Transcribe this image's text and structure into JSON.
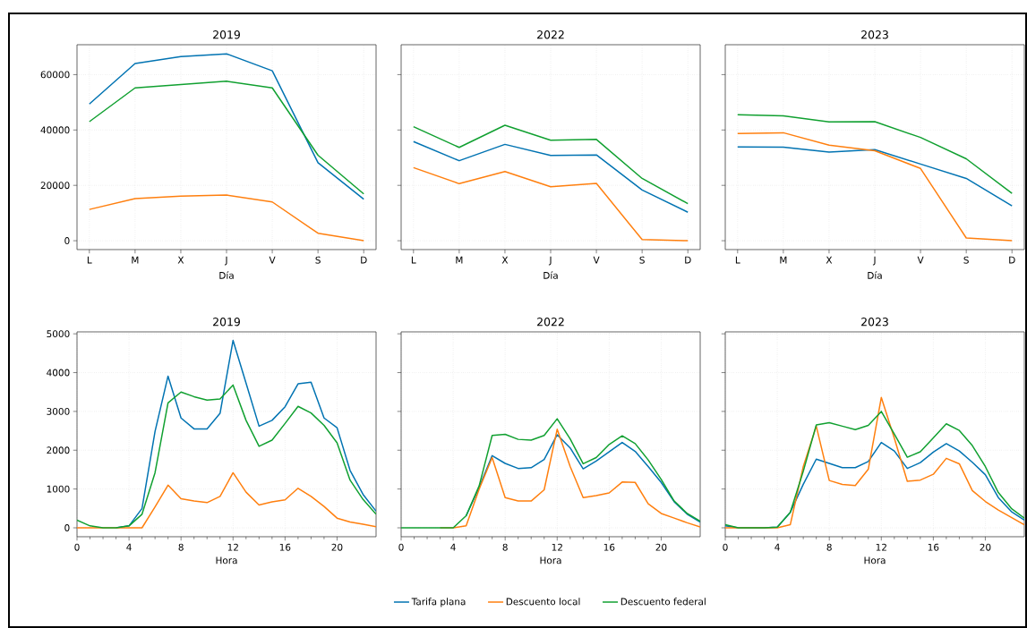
{
  "chart_data": [
    {
      "type": "line",
      "title": "2019",
      "xlabel": "Día",
      "categories": [
        "L",
        "M",
        "X",
        "J",
        "V",
        "S",
        "D"
      ],
      "ylim": [
        -3200,
        70800
      ],
      "yticks": [
        0,
        20000,
        40000,
        60000
      ],
      "grid": true,
      "legend": false,
      "series": [
        {
          "color": "#0173b2",
          "values": [
            49400,
            64000,
            66500,
            67500,
            61400,
            28200,
            15000
          ]
        },
        {
          "color": "#ff7f0e",
          "values": [
            11300,
            15200,
            16100,
            16500,
            14000,
            2700,
            0
          ]
        },
        {
          "color": "#10a030",
          "values": [
            43000,
            55200,
            56400,
            57600,
            55200,
            30900,
            16900
          ]
        }
      ]
    },
    {
      "type": "line",
      "title": "2022",
      "xlabel": "Día",
      "categories": [
        "L",
        "M",
        "X",
        "J",
        "V",
        "S",
        "D"
      ],
      "ylim": [
        -3200,
        70800
      ],
      "yticks": [
        0,
        20000,
        40000,
        60000
      ],
      "grid": true,
      "legend": false,
      "tick_labels": "x",
      "series": [
        {
          "color": "#0173b2",
          "values": [
            35800,
            28900,
            34800,
            30800,
            31000,
            18300,
            10300
          ]
        },
        {
          "color": "#ff7f0e",
          "values": [
            26400,
            20600,
            25000,
            19500,
            20700,
            400,
            0
          ]
        },
        {
          "color": "#10a030",
          "values": [
            41200,
            33700,
            41700,
            36300,
            36600,
            22500,
            13400
          ]
        }
      ]
    },
    {
      "type": "line",
      "title": "2023",
      "xlabel": "Día",
      "categories": [
        "L",
        "M",
        "X",
        "J",
        "V",
        "S",
        "D"
      ],
      "ylim": [
        -3200,
        70800
      ],
      "yticks": [
        0,
        20000,
        40000,
        60000
      ],
      "grid": true,
      "legend": false,
      "tick_labels": "x",
      "series": [
        {
          "color": "#0173b2",
          "values": [
            33900,
            33800,
            32000,
            32900,
            27700,
            22500,
            12600
          ]
        },
        {
          "color": "#ff7f0e",
          "values": [
            38700,
            39000,
            34500,
            32500,
            26100,
            1000,
            0
          ]
        },
        {
          "color": "#10a030",
          "values": [
            45500,
            45100,
            42900,
            43000,
            37300,
            29600,
            17100
          ]
        }
      ]
    },
    {
      "type": "line",
      "title": "2019",
      "xlabel": "Hora",
      "x": [
        0,
        1,
        2,
        3,
        4,
        5,
        6,
        7,
        8,
        9,
        10,
        11,
        12,
        13,
        14,
        15,
        16,
        17,
        18,
        19,
        20,
        21,
        22,
        23
      ],
      "xlim": [
        0,
        23
      ],
      "xticks": [
        0,
        4,
        8,
        12,
        16,
        20
      ],
      "ylim": [
        -230,
        5050
      ],
      "yticks": [
        0,
        1000,
        2000,
        3000,
        4000,
        5000
      ],
      "grid": true,
      "legend": false,
      "series": [
        {
          "color": "#0173b2",
          "values": [
            null,
            null,
            null,
            0,
            50,
            500,
            2480,
            3910,
            2830,
            2550,
            2550,
            2950,
            4830,
            3730,
            2620,
            2770,
            3120,
            3710,
            3750,
            2830,
            2580,
            1480,
            860,
            430
          ]
        },
        {
          "color": "#ff7f0e",
          "values": [
            0,
            0,
            0,
            0,
            0,
            0,
            540,
            1100,
            750,
            690,
            650,
            810,
            1420,
            920,
            590,
            670,
            720,
            1020,
            810,
            550,
            250,
            150,
            90,
            30
          ]
        },
        {
          "color": "#10a030",
          "values": [
            200,
            50,
            0,
            0,
            50,
            350,
            1420,
            3220,
            3500,
            3380,
            3290,
            3320,
            3680,
            2770,
            2100,
            2260,
            2690,
            3130,
            2960,
            2640,
            2190,
            1230,
            730,
            350
          ]
        }
      ]
    },
    {
      "type": "line",
      "title": "2022",
      "xlabel": "Hora",
      "x": [
        0,
        1,
        2,
        3,
        4,
        5,
        6,
        7,
        8,
        9,
        10,
        11,
        12,
        13,
        14,
        15,
        16,
        17,
        18,
        19,
        20,
        21,
        22,
        23
      ],
      "xlim": [
        0,
        23
      ],
      "xticks": [
        0,
        4,
        8,
        12,
        16,
        20
      ],
      "ylim": [
        -230,
        5050
      ],
      "yticks": [
        0,
        1000,
        2000,
        3000,
        4000,
        5000
      ],
      "grid": true,
      "legend": "bottom",
      "tick_labels": "x",
      "series": [
        {
          "name": "Tarifa plana",
          "color": "#0173b2",
          "values": [
            null,
            null,
            null,
            null,
            null,
            310,
            1040,
            1860,
            1660,
            1530,
            1550,
            1760,
            2400,
            2060,
            1520,
            1720,
            1960,
            2200,
            1970,
            1580,
            1170,
            670,
            350,
            150
          ]
        },
        {
          "name": "Descuento local",
          "color": "#ff7f0e",
          "values": [
            null,
            null,
            null,
            0,
            0,
            50,
            1000,
            1810,
            780,
            690,
            690,
            980,
            2540,
            1580,
            780,
            830,
            900,
            1180,
            1170,
            620,
            370,
            250,
            130,
            20
          ]
        },
        {
          "name": "Descuento federal",
          "color": "#10a030",
          "values": [
            0,
            0,
            0,
            0,
            0,
            310,
            1080,
            2380,
            2410,
            2280,
            2260,
            2380,
            2810,
            2290,
            1650,
            1810,
            2150,
            2370,
            2170,
            1750,
            1250,
            690,
            370,
            170
          ]
        }
      ]
    },
    {
      "type": "line",
      "title": "2023",
      "xlabel": "Hora",
      "x": [
        0,
        1,
        2,
        3,
        4,
        5,
        6,
        7,
        8,
        9,
        10,
        11,
        12,
        13,
        14,
        15,
        16,
        17,
        18,
        19,
        20,
        21,
        22,
        23
      ],
      "xlim": [
        0,
        23
      ],
      "xticks": [
        0,
        4,
        8,
        12,
        16,
        20
      ],
      "ylim": [
        -230,
        5050
      ],
      "yticks": [
        0,
        1000,
        2000,
        3000,
        4000,
        5000
      ],
      "grid": true,
      "legend": false,
      "tick_labels": "x",
      "series": [
        {
          "color": "#0173b2",
          "values": [
            50,
            0,
            0,
            0,
            20,
            400,
            1120,
            1770,
            1660,
            1550,
            1550,
            1710,
            2200,
            1980,
            1530,
            1680,
            1950,
            2170,
            1980,
            1690,
            1370,
            780,
            420,
            200
          ]
        },
        {
          "color": "#ff7f0e",
          "values": [
            0,
            0,
            0,
            0,
            0,
            80,
            1580,
            2620,
            1220,
            1120,
            1090,
            1510,
            3360,
            2310,
            1200,
            1230,
            1380,
            1790,
            1650,
            960,
            680,
            460,
            270,
            80
          ]
        },
        {
          "color": "#10a030",
          "values": [
            80,
            0,
            0,
            0,
            20,
            400,
            1460,
            2650,
            2710,
            2620,
            2530,
            2640,
            3000,
            2420,
            1820,
            1960,
            2320,
            2680,
            2510,
            2120,
            1580,
            910,
            500,
            250
          ]
        }
      ]
    }
  ]
}
